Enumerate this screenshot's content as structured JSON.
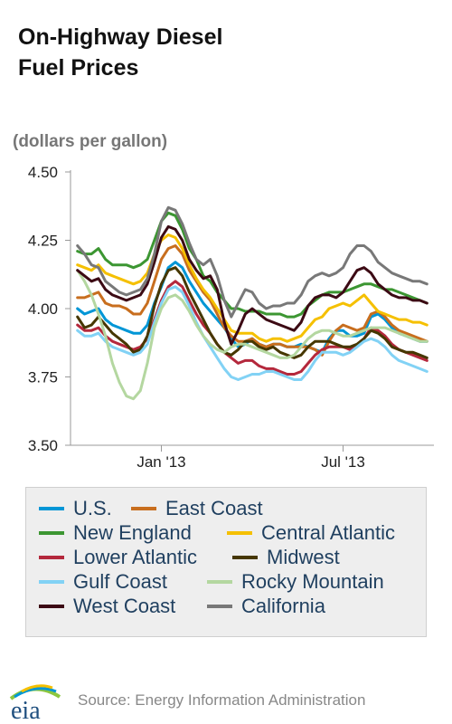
{
  "title_line1": "On-Highway Diesel",
  "title_line2": "Fuel Prices",
  "units": "(dollars per gallon)",
  "source": "Source: Energy Information Administration",
  "logo_text": "eia",
  "chart_data": {
    "type": "line",
    "title": "On-Highway Diesel Fuel Prices",
    "ylabel": "(dollars per gallon)",
    "xlabel": "",
    "ylim": [
      3.5,
      4.5
    ],
    "yticks": [
      {
        "value": 3.5,
        "label": "3.50"
      },
      {
        "value": 3.75,
        "label": "3.75"
      },
      {
        "value": 4.0,
        "label": "4.00"
      },
      {
        "value": 4.25,
        "label": "4.25"
      },
      {
        "value": 4.5,
        "label": "4.50"
      }
    ],
    "xticks": [
      {
        "week": 13,
        "label": "Jan '13"
      },
      {
        "week": 39,
        "label": "Jul '13"
      }
    ],
    "x_unit": "week",
    "xlim": [
      0,
      52
    ],
    "grid": false,
    "legend_position": "bottom",
    "series": [
      {
        "name": "U.S.",
        "color": "#0096d6",
        "values": [
          4.0,
          3.98,
          3.99,
          4.0,
          3.96,
          3.94,
          3.93,
          3.92,
          3.91,
          3.91,
          3.94,
          4.02,
          4.08,
          4.15,
          4.17,
          4.15,
          4.1,
          4.06,
          4.02,
          3.99,
          3.96,
          3.93,
          3.89,
          3.86,
          3.87,
          3.89,
          3.87,
          3.86,
          3.87,
          3.87,
          3.86,
          3.86,
          3.87,
          3.86,
          3.85,
          3.84,
          3.89,
          3.92,
          3.92,
          3.9,
          3.9,
          3.91,
          3.97,
          3.98,
          3.96,
          3.93,
          3.91,
          3.9,
          3.89,
          3.88,
          3.88
        ]
      },
      {
        "name": "East Coast",
        "color": "#c86e1e",
        "values": [
          4.04,
          4.04,
          4.05,
          4.06,
          4.02,
          4.01,
          4.01,
          4.0,
          3.98,
          3.98,
          4.02,
          4.1,
          4.18,
          4.22,
          4.23,
          4.2,
          4.14,
          4.1,
          4.06,
          4.03,
          3.98,
          3.93,
          3.9,
          3.88,
          3.88,
          3.89,
          3.87,
          3.86,
          3.87,
          3.87,
          3.86,
          3.86,
          3.86,
          3.86,
          3.85,
          3.83,
          3.88,
          3.92,
          3.94,
          3.93,
          3.92,
          3.93,
          3.98,
          3.99,
          3.97,
          3.94,
          3.92,
          3.91,
          3.9,
          3.89,
          3.88
        ]
      },
      {
        "name": "New England",
        "color": "#3c9632",
        "values": [
          4.21,
          4.2,
          4.2,
          4.22,
          4.18,
          4.16,
          4.16,
          4.16,
          4.15,
          4.16,
          4.18,
          4.25,
          4.32,
          4.35,
          4.34,
          4.29,
          4.22,
          4.18,
          4.12,
          4.1,
          4.06,
          4.03,
          4.0,
          4.0,
          3.99,
          3.99,
          3.99,
          3.98,
          3.98,
          3.98,
          3.97,
          3.97,
          3.98,
          4.01,
          4.03,
          4.05,
          4.06,
          4.06,
          4.06,
          4.07,
          4.08,
          4.09,
          4.09,
          4.08,
          4.07,
          4.07,
          4.06,
          4.05,
          4.04,
          4.03,
          4.02
        ]
      },
      {
        "name": "Central Atlantic",
        "color": "#f5c000",
        "values": [
          4.16,
          4.15,
          4.14,
          4.16,
          4.13,
          4.12,
          4.11,
          4.1,
          4.09,
          4.1,
          4.13,
          4.2,
          4.25,
          4.27,
          4.26,
          4.22,
          4.16,
          4.11,
          4.07,
          4.04,
          4.0,
          3.96,
          3.92,
          3.91,
          3.91,
          3.91,
          3.89,
          3.88,
          3.89,
          3.89,
          3.88,
          3.89,
          3.9,
          3.93,
          3.96,
          3.97,
          4.0,
          4.01,
          4.02,
          4.01,
          4.03,
          4.05,
          4.02,
          3.99,
          3.98,
          3.97,
          3.96,
          3.96,
          3.95,
          3.95,
          3.94
        ]
      },
      {
        "name": "Lower Atlantic",
        "color": "#b4283c",
        "values": [
          3.94,
          3.92,
          3.92,
          3.93,
          3.9,
          3.88,
          3.87,
          3.86,
          3.85,
          3.86,
          3.89,
          3.96,
          4.03,
          4.08,
          4.1,
          4.08,
          4.03,
          3.98,
          3.94,
          3.91,
          3.87,
          3.84,
          3.82,
          3.8,
          3.81,
          3.81,
          3.79,
          3.78,
          3.78,
          3.77,
          3.76,
          3.76,
          3.77,
          3.8,
          3.83,
          3.85,
          3.86,
          3.86,
          3.86,
          3.85,
          3.87,
          3.89,
          3.93,
          3.92,
          3.9,
          3.87,
          3.85,
          3.84,
          3.83,
          3.82,
          3.81
        ]
      },
      {
        "name": "Midwest",
        "color": "#463700",
        "values": [
          3.97,
          3.93,
          3.94,
          3.97,
          3.94,
          3.91,
          3.89,
          3.87,
          3.84,
          3.85,
          3.9,
          4.01,
          4.09,
          4.14,
          4.15,
          4.12,
          4.06,
          4.01,
          3.96,
          3.91,
          3.87,
          3.84,
          3.83,
          3.85,
          3.88,
          3.88,
          3.86,
          3.85,
          3.86,
          3.84,
          3.83,
          3.82,
          3.83,
          3.86,
          3.88,
          3.88,
          3.88,
          3.87,
          3.86,
          3.86,
          3.87,
          3.89,
          3.92,
          3.91,
          3.89,
          3.86,
          3.85,
          3.84,
          3.84,
          3.83,
          3.82
        ]
      },
      {
        "name": "Gulf Coast",
        "color": "#82d2f5",
        "values": [
          3.92,
          3.9,
          3.9,
          3.91,
          3.88,
          3.86,
          3.85,
          3.84,
          3.83,
          3.84,
          3.87,
          3.95,
          4.02,
          4.07,
          4.08,
          4.06,
          4.01,
          3.95,
          3.9,
          3.86,
          3.82,
          3.78,
          3.75,
          3.74,
          3.75,
          3.76,
          3.76,
          3.77,
          3.77,
          3.76,
          3.75,
          3.74,
          3.74,
          3.77,
          3.81,
          3.84,
          3.84,
          3.84,
          3.83,
          3.84,
          3.86,
          3.88,
          3.89,
          3.88,
          3.86,
          3.83,
          3.81,
          3.8,
          3.79,
          3.78,
          3.77
        ]
      },
      {
        "name": "Rocky Mountain",
        "color": "#b4d7a0",
        "values": [
          4.14,
          4.1,
          4.05,
          3.98,
          3.9,
          3.8,
          3.73,
          3.68,
          3.67,
          3.7,
          3.8,
          3.93,
          4.0,
          4.04,
          4.05,
          4.03,
          3.99,
          3.94,
          3.9,
          3.87,
          3.85,
          3.84,
          3.86,
          3.87,
          3.87,
          3.86,
          3.85,
          3.84,
          3.83,
          3.82,
          3.82,
          3.83,
          3.86,
          3.89,
          3.91,
          3.92,
          3.92,
          3.91,
          3.9,
          3.9,
          3.91,
          3.92,
          3.93,
          3.93,
          3.93,
          3.92,
          3.91,
          3.9,
          3.89,
          3.88,
          3.88
        ]
      },
      {
        "name": "West Coast",
        "color": "#3c0a14",
        "values": [
          4.14,
          4.12,
          4.1,
          4.11,
          4.07,
          4.05,
          4.04,
          4.03,
          4.04,
          4.05,
          4.09,
          4.17,
          4.26,
          4.3,
          4.29,
          4.25,
          4.18,
          4.14,
          4.11,
          4.12,
          4.07,
          3.95,
          3.87,
          3.92,
          3.98,
          4.0,
          3.98,
          3.96,
          3.95,
          3.94,
          3.93,
          3.92,
          3.95,
          4.01,
          4.04,
          4.05,
          4.05,
          4.04,
          4.06,
          4.1,
          4.14,
          4.15,
          4.13,
          4.09,
          4.07,
          4.05,
          4.04,
          4.04,
          4.03,
          4.03,
          4.02
        ]
      },
      {
        "name": "California",
        "color": "#787878",
        "values": [
          4.23,
          4.2,
          4.16,
          4.15,
          4.1,
          4.08,
          4.06,
          4.05,
          4.06,
          4.07,
          4.11,
          4.2,
          4.32,
          4.37,
          4.36,
          4.31,
          4.24,
          4.18,
          4.16,
          4.18,
          4.12,
          4.03,
          3.97,
          4.02,
          4.07,
          4.06,
          4.02,
          4.0,
          4.01,
          4.01,
          4.02,
          4.02,
          4.05,
          4.1,
          4.12,
          4.13,
          4.12,
          4.13,
          4.15,
          4.2,
          4.23,
          4.23,
          4.21,
          4.17,
          4.15,
          4.13,
          4.12,
          4.11,
          4.1,
          4.1,
          4.09
        ]
      }
    ]
  }
}
